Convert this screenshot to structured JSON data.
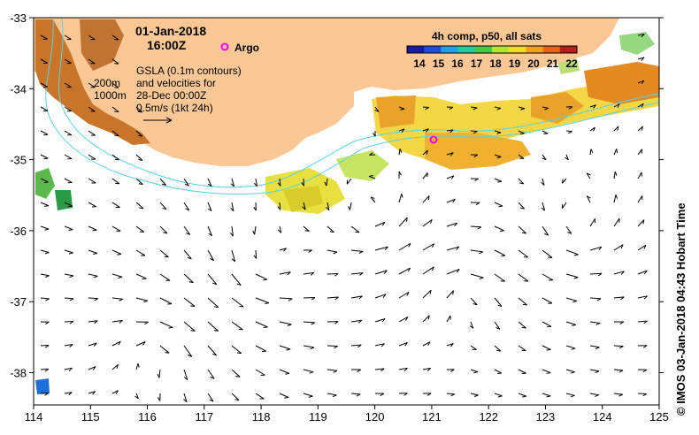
{
  "header": {
    "date": "01-Jan-2018",
    "time": "16:00Z",
    "argo_label": "Argo"
  },
  "legend": {
    "title": "4h comp, p50, all sats",
    "ticks": [
      "14",
      "15",
      "16",
      "17",
      "18",
      "19",
      "20",
      "21",
      "22"
    ],
    "colors": [
      "#1a1aa0",
      "#1f4fd8",
      "#1ea0e6",
      "#28c8a0",
      "#46c846",
      "#b4e628",
      "#f0dc1e",
      "#f0a01e",
      "#e6641e",
      "#b41e1e"
    ]
  },
  "annotation": {
    "contour_200": "200m",
    "contour_1000": "1000m",
    "gsla_lines": [
      "GSLA (0.1m contours)",
      "and velocities for",
      "28-Dec 00:00Z",
      "0.5m/s (1kt 24h)"
    ]
  },
  "axes": {
    "x_ticks": [
      "114",
      "115",
      "116",
      "117",
      "118",
      "119",
      "120",
      "121",
      "122",
      "123",
      "124",
      "125"
    ],
    "y_ticks": [
      "-33",
      "-34",
      "-35",
      "-36",
      "-37",
      "-38"
    ]
  },
  "credit": "© IMOS 03-Jan-2018 04:43 Hobart Time",
  "colors": {
    "land": "#fbc795",
    "shelf_contour": "#5ad2e6",
    "argo": "#ff00ff"
  }
}
